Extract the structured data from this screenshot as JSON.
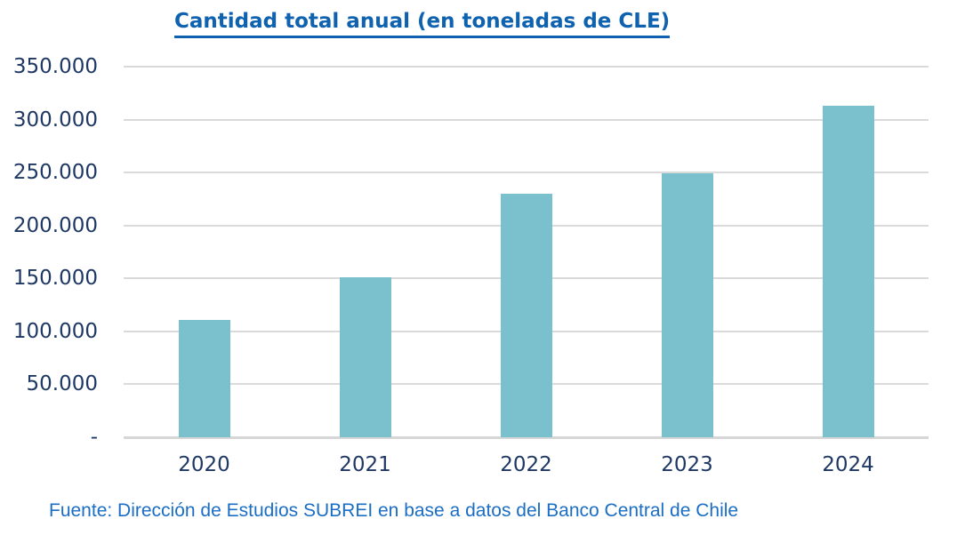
{
  "page": {
    "background": "#ffffff"
  },
  "chart_data": {
    "type": "bar",
    "title": "Cantidad total anual (en toneladas de CLE)",
    "categories": [
      "2020",
      "2021",
      "2022",
      "2023",
      "2024"
    ],
    "values": [
      111000,
      151000,
      230000,
      249000,
      313000
    ],
    "xlabel": "",
    "ylabel": "",
    "ylim": [
      0,
      350000
    ],
    "ytick_values": [
      0,
      50000,
      100000,
      150000,
      200000,
      250000,
      300000,
      350000
    ],
    "ytick_labels": [
      "-",
      "50.000",
      "100.000",
      "150.000",
      "200.000",
      "250.000",
      "300.000",
      "350.000"
    ],
    "grid": true,
    "legend": false,
    "bar_color": "#7BC0CD",
    "gridline_color": "#DADADA",
    "title_color": "#0E62B0",
    "axis_label_color": "#1F3864",
    "source_color": "#1B6EC4",
    "source_note": "Fuente: Dirección de Estudios SUBREI en base a datos del Banco Central de Chile"
  }
}
